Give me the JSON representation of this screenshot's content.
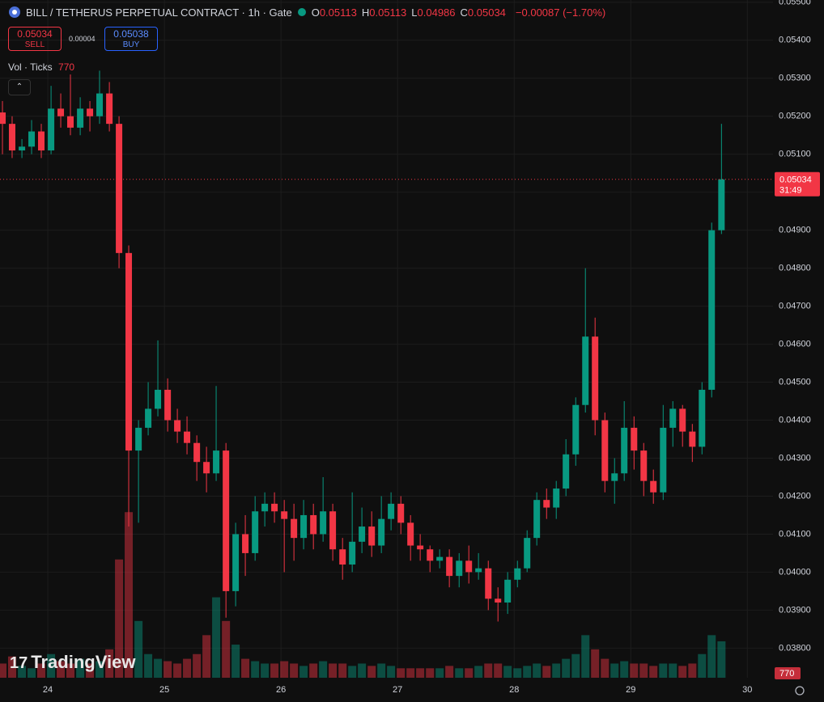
{
  "chart_data": {
    "type": "candlestick",
    "title": "BILL / TETHERUS PERPETUAL CONTRACT · 1h · Gate",
    "ohlc_header": [
      {
        "label": "O",
        "value": "0.05113"
      },
      {
        "label": "H",
        "value": "0.05113"
      },
      {
        "label": "L",
        "value": "0.04986"
      },
      {
        "label": "C",
        "value": "0.05034"
      }
    ],
    "change": "−0.00087 (−1.70%)",
    "sell_price": "0.05034",
    "sell_label": "SELL",
    "spread": "0.00004",
    "buy_price": "0.05038",
    "buy_label": "BUY",
    "volume_indicator": "Vol · Ticks",
    "volume_indicator_value": "770",
    "price_label": "0.05034",
    "countdown": "31:49",
    "volume_label": "770",
    "watermark": "TradingView",
    "up_color": "#089981",
    "down_color": "#f23645",
    "xlim": [
      23.59,
      30.22
    ],
    "xticks": [
      24,
      25,
      26,
      27,
      28,
      29,
      30
    ],
    "ylim": [
      0.03722,
      0.05506
    ],
    "yticks": [
      {
        "value": 0.055,
        "label": "0.05500"
      },
      {
        "value": 0.054,
        "label": "0.05400"
      },
      {
        "value": 0.053,
        "label": "0.05300"
      },
      {
        "value": 0.052,
        "label": "0.05200"
      },
      {
        "value": 0.051,
        "label": "0.05100"
      },
      {
        "value": 0.05,
        "label": "0.05000"
      },
      {
        "value": 0.049,
        "label": "0.04900"
      },
      {
        "value": 0.048,
        "label": "0.04800"
      },
      {
        "value": 0.047,
        "label": "0.04700"
      },
      {
        "value": 0.046,
        "label": "0.04600"
      },
      {
        "value": 0.045,
        "label": "0.04500"
      },
      {
        "value": 0.044,
        "label": "0.04400"
      },
      {
        "value": 0.043,
        "label": "0.04300"
      },
      {
        "value": 0.042,
        "label": "0.04200"
      },
      {
        "value": 0.041,
        "label": "0.04100"
      },
      {
        "value": 0.04,
        "label": "0.04000"
      },
      {
        "value": 0.039,
        "label": "0.03900"
      },
      {
        "value": 0.038,
        "label": "0.03800"
      }
    ],
    "volume_lim": [
      0,
      4000
    ],
    "grid": true,
    "x": [
      23.611,
      23.694,
      23.778,
      23.861,
      23.944,
      24.028,
      24.111,
      24.194,
      24.278,
      24.361,
      24.444,
      24.528,
      24.611,
      24.694,
      24.778,
      24.861,
      24.944,
      25.028,
      25.111,
      25.194,
      25.278,
      25.361,
      25.444,
      25.528,
      25.611,
      25.694,
      25.778,
      25.861,
      25.944,
      26.028,
      26.111,
      26.194,
      26.278,
      26.361,
      26.444,
      26.528,
      26.611,
      26.694,
      26.778,
      26.861,
      26.944,
      27.028,
      27.111,
      27.194,
      27.278,
      27.361,
      27.444,
      27.528,
      27.611,
      27.694,
      27.778,
      27.861,
      27.944,
      28.028,
      28.111,
      28.194,
      28.278,
      28.361,
      28.444,
      28.528,
      28.611,
      28.694,
      28.778,
      28.861,
      28.944,
      29.028,
      29.111,
      29.194,
      29.278,
      29.361,
      29.444,
      29.528,
      29.611,
      29.694,
      29.778
    ],
    "open": [
      0.0521,
      0.0518,
      0.0511,
      0.0512,
      0.0516,
      0.0511,
      0.0522,
      0.052,
      0.0517,
      0.0522,
      0.052,
      0.0526,
      0.0518,
      0.0484,
      0.0432,
      0.0438,
      0.0443,
      0.0448,
      0.044,
      0.0437,
      0.0434,
      0.0429,
      0.0426,
      0.0432,
      0.0395,
      0.041,
      0.0405,
      0.0416,
      0.0418,
      0.0416,
      0.0414,
      0.0409,
      0.0415,
      0.041,
      0.0416,
      0.0406,
      0.0402,
      0.0408,
      0.0412,
      0.0407,
      0.0414,
      0.0418,
      0.0413,
      0.0407,
      0.0406,
      0.0403,
      0.0404,
      0.0399,
      0.0403,
      0.04,
      0.0401,
      0.0393,
      0.0392,
      0.0398,
      0.0401,
      0.0409,
      0.0419,
      0.0417,
      0.0422,
      0.0431,
      0.0444,
      0.0462,
      0.044,
      0.0424,
      0.0426,
      0.0438,
      0.0432,
      0.0424,
      0.0421,
      0.0438,
      0.0443,
      0.0437,
      0.0433,
      0.0448,
      0.049
    ],
    "high": [
      0.0524,
      0.052,
      0.0514,
      0.0519,
      0.0518,
      0.0528,
      0.0526,
      0.0531,
      0.0525,
      0.0524,
      0.0532,
      0.0529,
      0.052,
      0.0486,
      0.044,
      0.045,
      0.0461,
      0.0451,
      0.0443,
      0.0441,
      0.0436,
      0.0433,
      0.0449,
      0.0434,
      0.0413,
      0.0415,
      0.042,
      0.0421,
      0.0421,
      0.0419,
      0.0418,
      0.0419,
      0.0418,
      0.0425,
      0.0418,
      0.0409,
      0.0421,
      0.0417,
      0.0416,
      0.042,
      0.0421,
      0.042,
      0.0415,
      0.041,
      0.0407,
      0.0406,
      0.0406,
      0.0405,
      0.0407,
      0.0405,
      0.0403,
      0.0396,
      0.04,
      0.0403,
      0.0411,
      0.0421,
      0.0422,
      0.0424,
      0.0435,
      0.0446,
      0.048,
      0.0467,
      0.0442,
      0.043,
      0.0445,
      0.0441,
      0.0434,
      0.0427,
      0.0444,
      0.0445,
      0.0444,
      0.0439,
      0.045,
      0.0492,
      0.0518
    ],
    "low": [
      0.051,
      0.0509,
      0.0509,
      0.051,
      0.0509,
      0.051,
      0.0517,
      0.0515,
      0.0515,
      0.0516,
      0.0518,
      0.0516,
      0.048,
      0.0412,
      0.0413,
      0.0436,
      0.0441,
      0.0437,
      0.0434,
      0.0431,
      0.0424,
      0.0421,
      0.0424,
      0.0388,
      0.0391,
      0.0399,
      0.0403,
      0.0412,
      0.0413,
      0.04,
      0.0403,
      0.0406,
      0.0406,
      0.0408,
      0.0403,
      0.0398,
      0.04,
      0.0405,
      0.0404,
      0.0405,
      0.0411,
      0.041,
      0.0403,
      0.0403,
      0.04,
      0.0401,
      0.0396,
      0.0396,
      0.0397,
      0.0398,
      0.039,
      0.0387,
      0.0389,
      0.0396,
      0.04,
      0.0407,
      0.0414,
      0.0414,
      0.042,
      0.0428,
      0.0442,
      0.0436,
      0.0421,
      0.0418,
      0.0424,
      0.0427,
      0.042,
      0.0418,
      0.0419,
      0.0433,
      0.0433,
      0.0429,
      0.0431,
      0.0446,
      0.0489
    ],
    "close": [
      0.0518,
      0.0511,
      0.0512,
      0.0516,
      0.0511,
      0.0522,
      0.052,
      0.0517,
      0.0522,
      0.052,
      0.0526,
      0.0518,
      0.0484,
      0.0432,
      0.0438,
      0.0443,
      0.0448,
      0.044,
      0.0437,
      0.0434,
      0.0429,
      0.0426,
      0.0432,
      0.0395,
      0.041,
      0.0405,
      0.0416,
      0.0418,
      0.0416,
      0.0414,
      0.0409,
      0.0415,
      0.041,
      0.0416,
      0.0406,
      0.0402,
      0.0408,
      0.0412,
      0.0407,
      0.0414,
      0.0418,
      0.0413,
      0.0407,
      0.0406,
      0.0403,
      0.0404,
      0.0399,
      0.0403,
      0.04,
      0.0401,
      0.0393,
      0.0392,
      0.0398,
      0.0401,
      0.0409,
      0.0419,
      0.0417,
      0.0422,
      0.0431,
      0.0444,
      0.0462,
      0.044,
      0.0424,
      0.0426,
      0.0438,
      0.0432,
      0.0424,
      0.0421,
      0.0438,
      0.0443,
      0.0437,
      0.0433,
      0.0448,
      0.049,
      0.05034
    ],
    "volume": [
      300,
      450,
      250,
      200,
      300,
      500,
      350,
      300,
      400,
      300,
      350,
      600,
      2500,
      3500,
      1200,
      500,
      400,
      350,
      300,
      400,
      500,
      900,
      1700,
      1200,
      700,
      400,
      350,
      300,
      300,
      350,
      300,
      250,
      300,
      350,
      300,
      300,
      250,
      300,
      250,
      300,
      250,
      200,
      200,
      200,
      200,
      200,
      250,
      200,
      200,
      250,
      300,
      300,
      250,
      200,
      250,
      300,
      250,
      300,
      400,
      500,
      900,
      600,
      400,
      300,
      350,
      300,
      300,
      250,
      300,
      300,
      250,
      300,
      500,
      900,
      770
    ]
  }
}
